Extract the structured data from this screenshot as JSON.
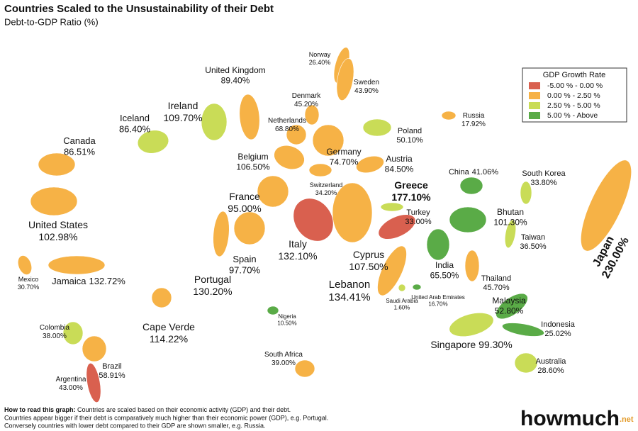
{
  "title": "Countries Scaled to the Unsustainability of their Debt",
  "subtitle": "Debt-to-GDP Ratio (%)",
  "legend": {
    "title": "GDP Growth Rate",
    "items": [
      {
        "label": "-5.00 %  -  0.00 %",
        "color": "#d9604f"
      },
      {
        "label": "0.00 %  -  2.50 %",
        "color": "#f6b246"
      },
      {
        "label": "2.50 %  -  5.00 %",
        "color": "#c9dc57"
      },
      {
        "label": "5.00 %  -  Above",
        "color": "#5aab47"
      }
    ]
  },
  "countries": [
    {
      "name": "Norway",
      "debt": "26.40%",
      "color": "#f6b246"
    },
    {
      "name": "Sweden",
      "debt": "43.90%",
      "color": "#f6b246"
    },
    {
      "name": "United Kingdom",
      "debt": "89.40%",
      "color": "#f6b246"
    },
    {
      "name": "Ireland",
      "debt": "109.70%",
      "color": "#c9dc57"
    },
    {
      "name": "Iceland",
      "debt": "86.40%",
      "color": "#c9dc57"
    },
    {
      "name": "Canada",
      "debt": "86.51%",
      "color": "#f6b246"
    },
    {
      "name": "United States",
      "debt": "102.98%",
      "color": "#f6b246"
    },
    {
      "name": "Mexico",
      "debt": "30.70%",
      "color": "#f6b246"
    },
    {
      "name": "Jamaica",
      "debt": "132.72%",
      "color": "#f6b246"
    },
    {
      "name": "Colombia",
      "debt": "38.00%",
      "color": "#c9dc57"
    },
    {
      "name": "Brazil",
      "debt": "58.91%",
      "color": "#f6b246"
    },
    {
      "name": "Argentina",
      "debt": "43.00%",
      "color": "#d9604f"
    },
    {
      "name": "Cape Verde",
      "debt": "114.22%",
      "color": "#f6b246"
    },
    {
      "name": "Portugal",
      "debt": "130.20%",
      "color": "#f6b246"
    },
    {
      "name": "Spain",
      "debt": "97.70%",
      "color": "#f6b246"
    },
    {
      "name": "France",
      "debt": "95.00%",
      "color": "#f6b246"
    },
    {
      "name": "Belgium",
      "debt": "106.50%",
      "color": "#f6b246"
    },
    {
      "name": "Netherlands",
      "debt": "68.80%",
      "color": "#f6b246"
    },
    {
      "name": "Denmark",
      "debt": "45.20%",
      "color": "#f6b246"
    },
    {
      "name": "Germany",
      "debt": "74.70%",
      "color": "#f6b246"
    },
    {
      "name": "Switzerland",
      "debt": "34.20%",
      "color": "#f6b246"
    },
    {
      "name": "Austria",
      "debt": "84.50%",
      "color": "#f6b246"
    },
    {
      "name": "Poland",
      "debt": "50.10%",
      "color": "#c9dc57"
    },
    {
      "name": "Russia",
      "debt": "17.92%",
      "color": "#f6b246"
    },
    {
      "name": "Greece",
      "debt": "177.10%",
      "color": "#f6b246"
    },
    {
      "name": "Turkey",
      "debt": "33.00%",
      "color": "#c9dc57"
    },
    {
      "name": "Italy",
      "debt": "132.10%",
      "color": "#d9604f"
    },
    {
      "name": "Cyprus",
      "debt": "107.50%",
      "color": "#d9604f"
    },
    {
      "name": "Lebanon",
      "debt": "134.41%",
      "color": "#f6b246"
    },
    {
      "name": "Saudi Arabia",
      "debt": "1.60%",
      "color": "#c9dc57"
    },
    {
      "name": "United Arab Emirates",
      "debt": "16.70%",
      "color": "#5aab47"
    },
    {
      "name": "Nigeria",
      "debt": "10.50%",
      "color": "#5aab47"
    },
    {
      "name": "South Africa",
      "debt": "39.00%",
      "color": "#f6b246"
    },
    {
      "name": "China",
      "debt": "41.06%",
      "color": "#5aab47"
    },
    {
      "name": "South Korea",
      "debt": "33.80%",
      "color": "#c9dc57"
    },
    {
      "name": "Bhutan",
      "debt": "101.30%",
      "color": "#5aab47"
    },
    {
      "name": "India",
      "debt": "65.50%",
      "color": "#5aab47"
    },
    {
      "name": "Taiwan",
      "debt": "36.50%",
      "color": "#c9dc57"
    },
    {
      "name": "Thailand",
      "debt": "45.70%",
      "color": "#f6b246"
    },
    {
      "name": "Japan",
      "debt": "230.00%",
      "color": "#f6b246"
    },
    {
      "name": "Malaysia",
      "debt": "52.80%",
      "color": "#5aab47"
    },
    {
      "name": "Indonesia",
      "debt": "25.02%",
      "color": "#5aab47"
    },
    {
      "name": "Singapore",
      "debt": "99.30%",
      "color": "#c9dc57"
    },
    {
      "name": "Australia",
      "debt": "28.60%",
      "color": "#c9dc57"
    }
  ],
  "footer": {
    "heading": "How to read this graph:",
    "line1": "Countries are scaled based on their economic activity (GDP) and their debt.",
    "line2": "Countries appear bigger if their debt is comparatively much higher than their economic power (GDP), e.g. Portugal.",
    "line3": "Conversely countries with lower debt compared to their GDP are shown smaller, e.g. Russia."
  },
  "logo": {
    "name": "howmuch",
    "tld": ".net"
  }
}
